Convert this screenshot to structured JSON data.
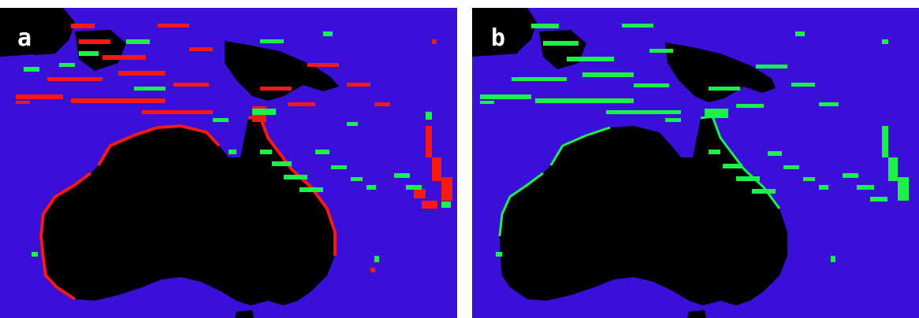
{
  "colors": {
    "ocean": "#3a0fd8",
    "land": "#000000",
    "green": "#1ef04a",
    "red": "#f51a16",
    "label_fill": "#ffffff"
  },
  "panels": [
    {
      "label": "a",
      "layers": [
        "land",
        "green-pixels",
        "red-pixels"
      ]
    },
    {
      "label": "b",
      "layers": [
        "land",
        "green-pixels"
      ]
    }
  ]
}
